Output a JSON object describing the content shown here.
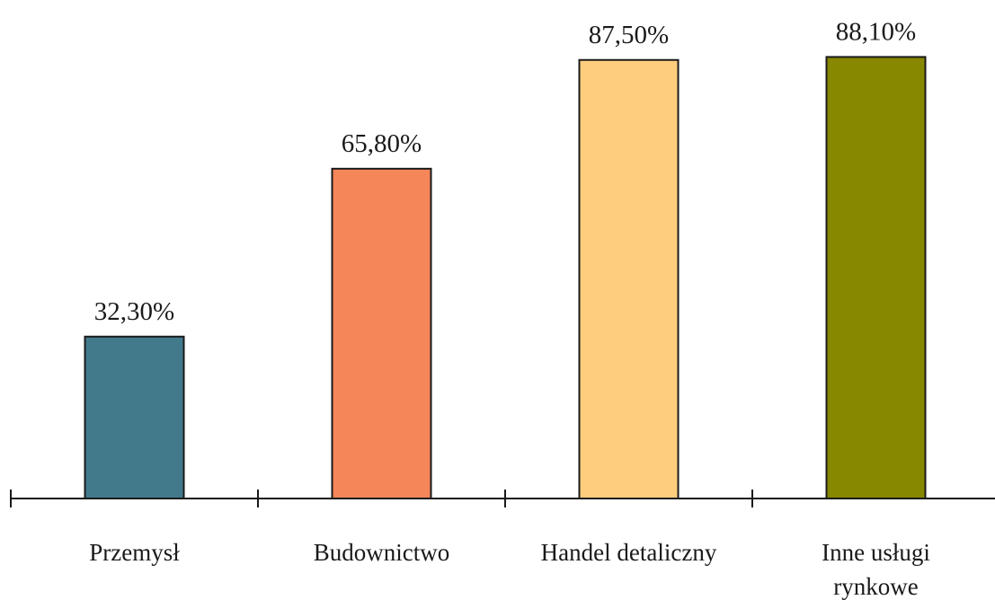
{
  "chart_data": {
    "type": "bar",
    "categories": [
      [
        "Przemysł"
      ],
      [
        "Budownictwo"
      ],
      [
        "Handel detaliczny"
      ],
      [
        "Inne usługi",
        "rynkowe"
      ]
    ],
    "values": [
      32.3,
      65.8,
      87.5,
      88.1
    ],
    "value_labels": [
      "32,30%",
      "65,80%",
      "87,50%",
      "88,10%"
    ],
    "colors": [
      "#427A8C",
      "#F5865A",
      "#FECD7E",
      "#878700"
    ],
    "ylim": [
      0,
      100
    ],
    "title": "",
    "xlabel": "",
    "ylabel": "",
    "grid": false,
    "legend": "none"
  }
}
